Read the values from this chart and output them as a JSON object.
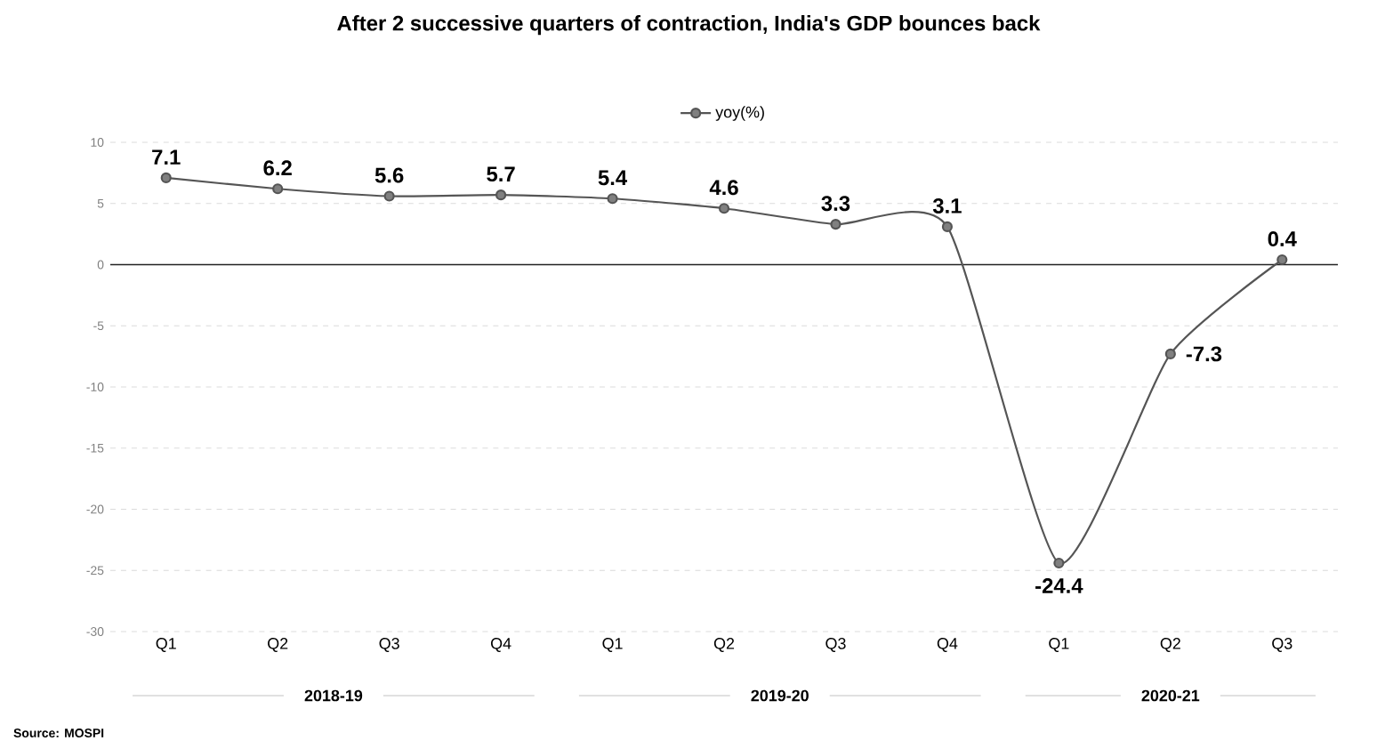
{
  "chart_data": {
    "type": "line",
    "title": "After 2 successive quarters of contraction, India's GDP bounces back",
    "categories": [
      "Q1",
      "Q2",
      "Q3",
      "Q4",
      "Q1",
      "Q2",
      "Q3",
      "Q4",
      "Q1",
      "Q2",
      "Q3"
    ],
    "series": [
      {
        "name": "yoy(%)",
        "color": "#555555",
        "values": [
          7.1,
          6.2,
          5.6,
          5.7,
          5.4,
          4.6,
          3.3,
          3.1,
          -24.4,
          -7.3,
          0.4
        ]
      }
    ],
    "ylim": [
      -30,
      10
    ],
    "yticks": [
      10,
      5,
      0,
      -5,
      -10,
      -15,
      -20,
      -25,
      -30
    ],
    "grid": "y",
    "legend": "top",
    "marker": "circle",
    "line_style": "solid",
    "data_labels": true,
    "ref_lines": [
      {
        "axis": "y",
        "value": 0,
        "color": "#222222"
      }
    ],
    "annotations": [
      "2018-19",
      "2019-20",
      "2020-21",
      "Source: MOSPI"
    ]
  }
}
